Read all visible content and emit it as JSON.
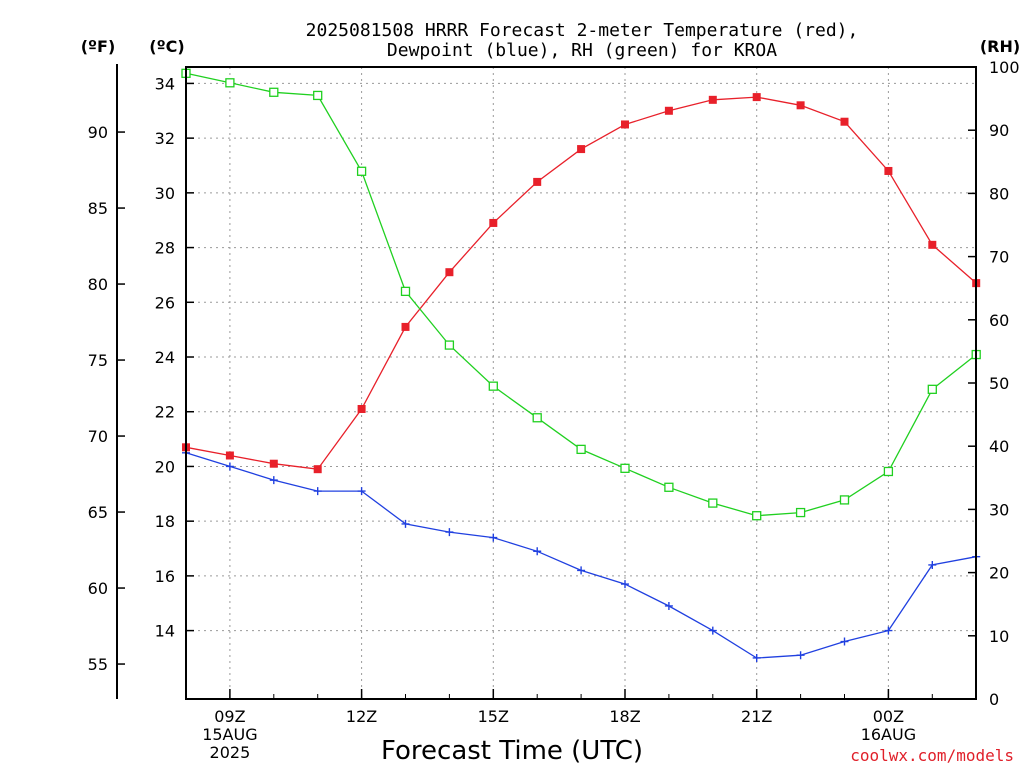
{
  "chart_data": {
    "type": "line",
    "title_lines": [
      "2025081508 HRRR Forecast 2-meter Temperature (red),",
      "Dewpoint (blue), RH (green) for KROA"
    ],
    "xlabel": "Forecast Time (UTC)",
    "credit": "coolwx.com/models",
    "unit_labels": {
      "fahrenheit": "(ºF)",
      "celsius": "(ºC)",
      "rh": "(RH)"
    },
    "x": [
      "08Z",
      "09Z",
      "10Z",
      "11Z",
      "12Z",
      "13Z",
      "14Z",
      "15Z",
      "16Z",
      "17Z",
      "18Z",
      "19Z",
      "20Z",
      "21Z",
      "22Z",
      "23Z",
      "00Z",
      "01Z",
      "02Z"
    ],
    "x_tick_labels": [
      {
        "x": "09Z",
        "lines": [
          "09Z",
          "15AUG",
          "2025"
        ]
      },
      {
        "x": "12Z",
        "lines": [
          "12Z"
        ]
      },
      {
        "x": "15Z",
        "lines": [
          "15Z"
        ]
      },
      {
        "x": "18Z",
        "lines": [
          "18Z"
        ]
      },
      {
        "x": "21Z",
        "lines": [
          "21Z"
        ]
      },
      {
        "x": "00Z",
        "lines": [
          "00Z",
          "16AUG"
        ]
      }
    ],
    "y_left_celsius": {
      "range": [
        11.5,
        34.6
      ],
      "ticks": [
        14,
        16,
        18,
        20,
        22,
        24,
        26,
        28,
        30,
        32,
        34
      ]
    },
    "y_left_fahrenheit": {
      "ticks": [
        55,
        60,
        65,
        70,
        75,
        80,
        85,
        90
      ]
    },
    "y_right_rh": {
      "range": [
        0,
        100
      ],
      "ticks": [
        0,
        10,
        20,
        30,
        40,
        50,
        60,
        70,
        80,
        90,
        100
      ]
    },
    "grid": true,
    "series": [
      {
        "name": "Temperature",
        "axis": "celsius",
        "color": "#e8202a",
        "marker": "filled-square",
        "values": [
          20.7,
          20.4,
          20.1,
          19.9,
          22.1,
          25.1,
          27.1,
          28.9,
          30.4,
          31.6,
          32.5,
          33.0,
          33.4,
          33.5,
          33.2,
          32.6,
          30.8,
          28.1,
          26.7
        ]
      },
      {
        "name": "Dewpoint",
        "axis": "celsius",
        "color": "#2040e0",
        "marker": "plus",
        "values": [
          20.5,
          20.0,
          19.5,
          19.1,
          19.1,
          17.9,
          17.6,
          17.4,
          16.9,
          16.2,
          15.7,
          14.9,
          14.0,
          13.0,
          13.1,
          13.6,
          14.0,
          16.4,
          16.7
        ]
      },
      {
        "name": "RH",
        "axis": "rh",
        "color": "#20d020",
        "marker": "open-square",
        "values": [
          99,
          97.5,
          96,
          95.5,
          83.5,
          64.5,
          56,
          49.5,
          44.5,
          39.5,
          36.5,
          33.5,
          31,
          29,
          29.5,
          31.5,
          36,
          49,
          54.5
        ]
      }
    ]
  }
}
